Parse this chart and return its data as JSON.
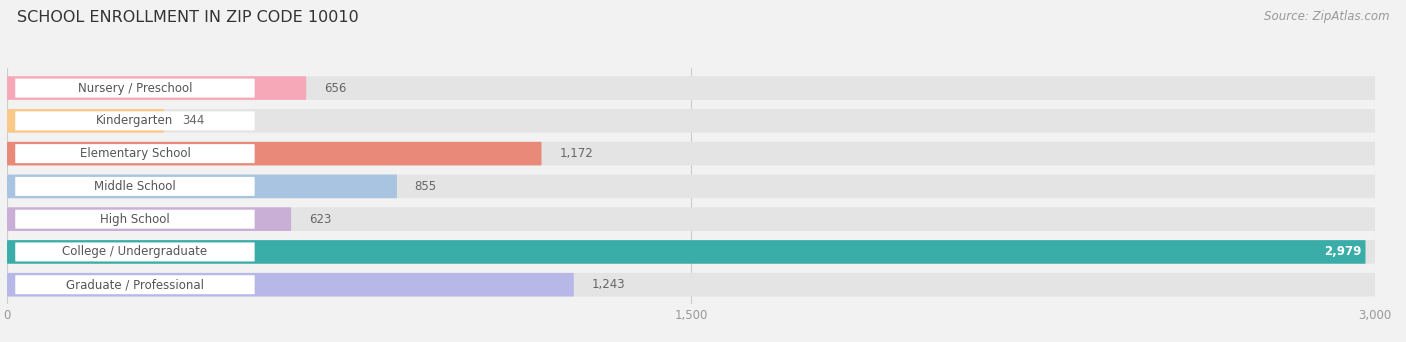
{
  "title": "SCHOOL ENROLLMENT IN ZIP CODE 10010",
  "source": "Source: ZipAtlas.com",
  "categories": [
    "Nursery / Preschool",
    "Kindergarten",
    "Elementary School",
    "Middle School",
    "High School",
    "College / Undergraduate",
    "Graduate / Professional"
  ],
  "values": [
    656,
    344,
    1172,
    855,
    623,
    2979,
    1243
  ],
  "bar_colors": [
    "#f7a8b8",
    "#f9c98a",
    "#e8897a",
    "#a8c4e0",
    "#c9aed6",
    "#3aada8",
    "#b8b8e8"
  ],
  "xlim_max": 3000,
  "xticks": [
    0,
    1500,
    3000
  ],
  "bg_color": "#f2f2f2",
  "bar_track_color": "#e4e4e4",
  "title_fontsize": 11.5,
  "label_fontsize": 8.5,
  "value_fontsize": 8.5,
  "source_fontsize": 8.5,
  "bar_height": 0.72,
  "bar_gap": 0.28
}
